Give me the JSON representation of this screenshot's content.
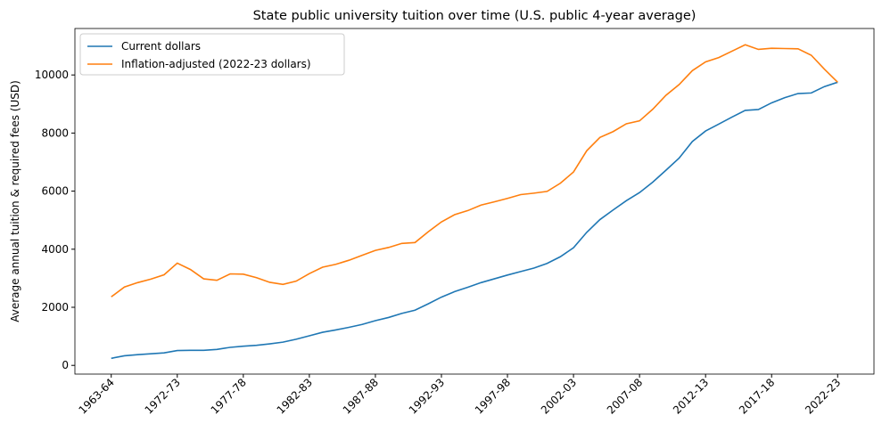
{
  "chart_data": {
    "type": "line",
    "title": "State public university tuition over time (U.S. public 4-year average)",
    "y_label": "Average annual tuition & required fees (USD)",
    "categories": [
      "1963-64",
      null,
      null,
      null,
      null,
      "1972-73",
      null,
      null,
      null,
      null,
      "1977-78",
      null,
      null,
      null,
      null,
      "1982-83",
      null,
      null,
      null,
      null,
      "1987-88",
      null,
      null,
      null,
      null,
      "1992-93",
      null,
      null,
      null,
      null,
      "1997-98",
      null,
      null,
      null,
      null,
      "2002-03",
      null,
      null,
      null,
      null,
      "2007-08",
      null,
      null,
      null,
      null,
      "2012-13",
      null,
      null,
      null,
      null,
      "2017-18",
      null,
      null,
      null,
      null,
      "2022-23"
    ],
    "series": [
      {
        "name": "Current dollars",
        "color": "#1f77b4",
        "values": [
          243,
          330,
          370,
          400,
          430,
          510,
          520,
          520,
          550,
          620,
          660,
          690,
          740,
          800,
          900,
          1020,
          1140,
          1220,
          1310,
          1410,
          1540,
          1650,
          1790,
          1900,
          2120,
          2350,
          2540,
          2690,
          2850,
          2980,
          3110,
          3230,
          3350,
          3510,
          3740,
          4050,
          4580,
          5020,
          5350,
          5670,
          5950,
          6310,
          6720,
          7140,
          7710,
          8070,
          8310,
          8550,
          8780,
          8810,
          9040,
          9220,
          9360,
          9380,
          9600,
          9750
        ]
      },
      {
        "name": "Inflation-adjusted (2022-23 dollars)",
        "color": "#ff7f0e",
        "values": [
          2360,
          2700,
          2850,
          2970,
          3120,
          3520,
          3300,
          2980,
          2930,
          3150,
          3140,
          3020,
          2860,
          2790,
          2900,
          3160,
          3380,
          3480,
          3620,
          3790,
          3960,
          4060,
          4200,
          4230,
          4600,
          4940,
          5190,
          5330,
          5520,
          5630,
          5750,
          5880,
          5930,
          5990,
          6270,
          6660,
          7390,
          7850,
          8050,
          8320,
          8420,
          8820,
          9300,
          9670,
          10150,
          10450,
          10600,
          10820,
          11040,
          10880,
          10920,
          10910,
          10900,
          10680,
          10200,
          9750
        ]
      }
    ],
    "ylim": [
      -300,
      11600
    ],
    "yticks": [
      0,
      2000,
      4000,
      6000,
      8000,
      10000
    ],
    "legend": "upper left",
    "grid": false
  }
}
